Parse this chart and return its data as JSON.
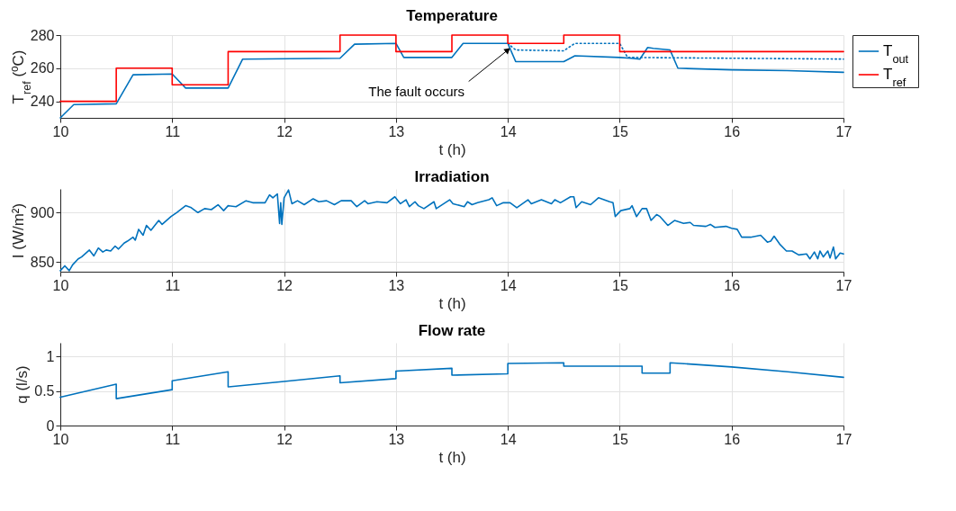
{
  "chart_data": [
    {
      "type": "line",
      "title": "Temperature",
      "xlabel": "t (h)",
      "ylabel": "T$_{ref}$ (ºC)",
      "xlim": [
        10,
        17
      ],
      "xticks": [
        10,
        11,
        12,
        13,
        14,
        15,
        16,
        17
      ],
      "ylim": [
        230,
        280
      ],
      "yticks": [
        240,
        260,
        280
      ],
      "grid": true,
      "legend": "right",
      "annotations": [
        {
          "text": "The fault occurs",
          "x": 14,
          "y": 271
        }
      ],
      "series": [
        {
          "name": "T$_{out}$",
          "color": "#0072bd",
          "x": [
            10,
            10.12,
            10.5,
            10.65,
            11,
            11.12,
            11.5,
            11.63,
            12.5,
            12.63,
            13,
            13.07,
            13.5,
            13.6,
            14,
            14.07,
            14.5,
            14.6,
            15,
            15.1,
            15.18,
            15.25,
            15.3,
            15.45,
            15.52,
            16,
            16.5,
            17
          ],
          "values": [
            230,
            238,
            238.5,
            256,
            256.5,
            248,
            248,
            265.5,
            266,
            274.5,
            275,
            266.5,
            266.5,
            275,
            275,
            264,
            264,
            267.5,
            266.5,
            266,
            265.5,
            272.5,
            272,
            271,
            260,
            259,
            258.5,
            257.5
          ]
        },
        {
          "color": "#0072bd",
          "line_style": "dotted",
          "x": [
            14,
            14.07,
            14.5,
            14.6,
            15,
            15.07,
            17
          ],
          "values": [
            275,
            271,
            270.5,
            275,
            275,
            266.5,
            265.5
          ]
        },
        {
          "name": "T$_{ref}$",
          "type": "step",
          "color": "#ff0000",
          "x": [
            10,
            10.5,
            11,
            11.5,
            12.5,
            13,
            13.5,
            14,
            14.5,
            15,
            17
          ],
          "values": [
            240,
            260,
            250,
            270,
            280,
            270,
            280,
            275,
            280,
            270,
            270
          ]
        }
      ]
    },
    {
      "type": "line",
      "title": "Irradiation",
      "xlabel": "t (h)",
      "ylabel": "I (W/m²)",
      "xlim": [
        10,
        17
      ],
      "xticks": [
        10,
        11,
        12,
        13,
        14,
        15,
        16,
        17
      ],
      "ylim": [
        840,
        924
      ],
      "yticks": [
        850,
        900
      ],
      "grid": true,
      "series": [
        {
          "color": "#0072bd",
          "x": [
            10,
            10.04,
            10.08,
            10.11,
            10.16,
            10.19,
            10.26,
            10.3,
            10.34,
            10.38,
            10.41,
            10.45,
            10.49,
            10.52,
            10.57,
            10.6,
            10.65,
            10.67,
            10.7,
            10.74,
            10.77,
            10.81,
            10.88,
            10.91,
            10.99,
            11.04,
            11.12,
            11.17,
            11.23,
            11.29,
            11.35,
            11.41,
            11.46,
            11.5,
            11.57,
            11.66,
            11.72,
            11.83,
            11.87,
            11.9,
            11.94,
            11.96,
            11.97,
            11.98,
            12,
            12.04,
            12.07,
            12.12,
            12.18,
            12.26,
            12.31,
            12.38,
            12.45,
            12.51,
            12.6,
            12.65,
            12.72,
            12.75,
            12.83,
            12.92,
            12.99,
            13.04,
            13.09,
            13.12,
            13.17,
            13.2,
            13.25,
            13.34,
            13.36,
            13.48,
            13.51,
            13.61,
            13.64,
            13.68,
            13.73,
            13.83,
            13.86,
            13.9,
            13.96,
            14.02,
            14.08,
            14.18,
            14.21,
            14.3,
            14.39,
            14.42,
            14.47,
            14.56,
            14.59,
            14.61,
            14.66,
            14.74,
            14.81,
            14.91,
            14.94,
            14.96,
            15.01,
            15.09,
            15.11,
            15.15,
            15.2,
            15.24,
            15.28,
            15.33,
            15.36,
            15.43,
            15.49,
            15.57,
            15.63,
            15.66,
            15.77,
            15.81,
            15.85,
            15.95,
            16,
            16.05,
            16.09,
            16.17,
            16.26,
            16.32,
            16.35,
            16.38,
            16.43,
            16.49,
            16.54,
            16.6,
            16.67,
            16.7,
            16.74,
            16.77,
            16.79,
            16.82,
            16.86,
            16.88,
            16.91,
            16.93,
            16.97,
            17
          ],
          "values": [
            841,
            846,
            841,
            847,
            853,
            855,
            862,
            856,
            864,
            860,
            862,
            861,
            866,
            863,
            869,
            871,
            875,
            872,
            883,
            877,
            887,
            882,
            892,
            888,
            896,
            900,
            907,
            905,
            900,
            904,
            903,
            908,
            902,
            907,
            906,
            912,
            910,
            910,
            918,
            915,
            919,
            889,
            910,
            888,
            915,
            923,
            909,
            912,
            908,
            914,
            911,
            912,
            908,
            912,
            912,
            906,
            912,
            909,
            911,
            910,
            916,
            909,
            913,
            906,
            911,
            907,
            904,
            911,
            904,
            913,
            909,
            906,
            911,
            908,
            910,
            913,
            915,
            907,
            910,
            910,
            905,
            913,
            909,
            913,
            909,
            913,
            910,
            916,
            916,
            905,
            911,
            908,
            915,
            911,
            910,
            896,
            902,
            904,
            907,
            896,
            904,
            904,
            892,
            898,
            896,
            887,
            892,
            889,
            890,
            887,
            886,
            888,
            885,
            886,
            884,
            883,
            875,
            875,
            877,
            870,
            871,
            876,
            868,
            861,
            861,
            857,
            858,
            853,
            860,
            853,
            861,
            855,
            861,
            854,
            865,
            853,
            859,
            858
          ]
        }
      ]
    },
    {
      "type": "line",
      "title": "Flow rate",
      "xlabel": "t (h)",
      "ylabel": "q (l/s)",
      "xlim": [
        10,
        17
      ],
      "xticks": [
        10,
        11,
        12,
        13,
        14,
        15,
        16,
        17
      ],
      "ylim": [
        0,
        1.2
      ],
      "yticks": [
        0,
        0.5,
        1
      ],
      "grid": true,
      "series": [
        {
          "color": "#0072bd",
          "x": [
            10,
            10.5,
            10.5,
            11,
            11,
            11.5,
            11.5,
            12,
            12.5,
            12.5,
            13,
            13,
            13.5,
            13.5,
            14,
            14,
            14.5,
            14.5,
            15.2,
            15.2,
            15.45,
            15.45,
            16,
            16.5,
            17
          ],
          "values": [
            0.41,
            0.6,
            0.39,
            0.52,
            0.65,
            0.78,
            0.56,
            0.64,
            0.72,
            0.62,
            0.68,
            0.79,
            0.83,
            0.73,
            0.75,
            0.9,
            0.91,
            0.86,
            0.86,
            0.76,
            0.76,
            0.91,
            0.85,
            0.78,
            0.7
          ]
        }
      ]
    }
  ]
}
